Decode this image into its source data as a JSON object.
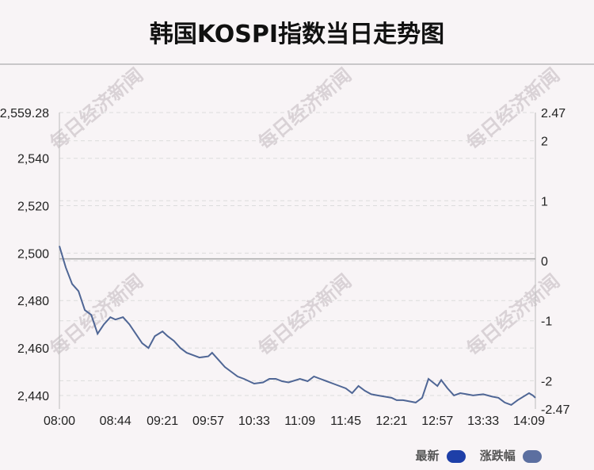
{
  "title": "韩国KOSPI指数当日走势图",
  "watermark": "每日经济新闻",
  "legend": [
    {
      "label": "最新",
      "color": "#1e3fa8"
    },
    {
      "label": "涨跌幅",
      "color": "#5c6fa0"
    }
  ],
  "colors": {
    "line": "#4f6695",
    "zero_line": "#a9a9a9"
  },
  "chart_data": {
    "type": "line",
    "x_ticks": [
      "08:00",
      "08:44",
      "09:21",
      "09:57",
      "10:33",
      "11:09",
      "11:45",
      "12:21",
      "12:57",
      "13:33",
      "14:09"
    ],
    "y_left_ticks": [
      "2,559.28",
      "2,540",
      "2,520",
      "2,500",
      "2,480",
      "2,460",
      "2,440"
    ],
    "y_right_ticks": [
      "2.47",
      "2",
      "1",
      "0",
      "-1",
      "-2",
      "-2.47"
    ],
    "ylim_left": [
      2434.3,
      2559.28
    ],
    "ylim_right": [
      -2.47,
      2.47
    ],
    "previous_close": 2497.6,
    "series": [
      {
        "x": [
          "08:00",
          "08:05",
          "08:10",
          "08:15",
          "08:20",
          "08:25",
          "08:30",
          "08:35",
          "08:40",
          "08:44",
          "08:50",
          "08:55",
          "09:00",
          "09:05",
          "09:10",
          "09:15",
          "09:21",
          "09:25",
          "09:30",
          "09:35",
          "09:40",
          "09:45",
          "09:50",
          "09:57",
          "10:00",
          "10:05",
          "10:10",
          "10:15",
          "10:20",
          "10:25",
          "10:33",
          "10:40",
          "10:45",
          "10:50",
          "10:55",
          "11:00",
          "11:09",
          "11:15",
          "11:20",
          "11:25",
          "11:30",
          "11:35",
          "11:45",
          "11:50",
          "11:55",
          "12:00",
          "12:05",
          "12:10",
          "12:21",
          "12:25",
          "12:30",
          "12:35",
          "12:40",
          "12:45",
          "12:50",
          "12:57",
          "13:00",
          "13:05",
          "13:10",
          "13:15",
          "13:20",
          "13:25",
          "13:33",
          "13:40",
          "13:45",
          "13:50",
          "13:55",
          "14:00",
          "14:09",
          "14:12",
          "14:14"
        ],
        "values": [
          2503.0,
          2494.0,
          2487.0,
          2484.0,
          2476.0,
          2474.0,
          2466.0,
          2470.0,
          2473.0,
          2472.0,
          2473.0,
          2470.0,
          2466.0,
          2462.0,
          2460.0,
          2465.0,
          2467.0,
          2465.0,
          2463.0,
          2460.0,
          2458.0,
          2457.0,
          2456.0,
          2456.5,
          2458.0,
          2455.0,
          2452.0,
          2450.0,
          2448.0,
          2447.0,
          2445.0,
          2445.5,
          2447.0,
          2447.0,
          2446.0,
          2445.5,
          2447.0,
          2446.0,
          2448.0,
          2447.0,
          2446.0,
          2445.0,
          2443.0,
          2441.0,
          2444.0,
          2442.0,
          2440.5,
          2440.0,
          2439.0,
          2438.0,
          2438.0,
          2437.5,
          2437.0,
          2439.0,
          2447.0,
          2444.0,
          2446.5,
          2443.0,
          2440.0,
          2441.0,
          2440.5,
          2440.0,
          2440.5,
          2439.5,
          2439.0,
          2437.0,
          2436.0,
          2438.0,
          2441.0,
          2440.0,
          2439.0
        ]
      }
    ],
    "grid": true
  }
}
